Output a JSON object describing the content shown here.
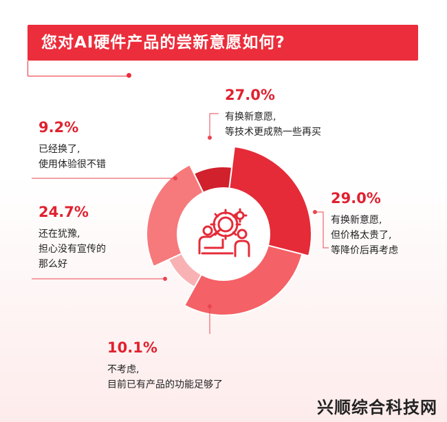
{
  "chart_data": {
    "type": "pie",
    "title": "您对AI硬件产品的尝新意愿如何?",
    "slices": [
      {
        "value": 27.0,
        "pct_label": "27.0%",
        "desc": [
          "有换新意愿,",
          "等技术更成熟一些再买"
        ],
        "color": "#e52b38"
      },
      {
        "value": 29.0,
        "pct_label": "29.0%",
        "desc": [
          "有换新意愿,",
          "但价格太贵了,",
          "等降价后再考虑"
        ],
        "color": "#f46166"
      },
      {
        "value": 10.1,
        "pct_label": "10.1%",
        "desc": [
          "不考虑,",
          "目前已有产品的功能足够了"
        ],
        "color": "#f9b2b4"
      },
      {
        "value": 24.7,
        "pct_label": "24.7%",
        "desc": [
          "还在犹豫,",
          "担心没有宣传的",
          "那么好"
        ],
        "color": "#f6797c"
      },
      {
        "value": 9.2,
        "pct_label": "9.2%",
        "desc": [
          "已经换了,",
          "使用体验很不错"
        ],
        "color": "#d0212c"
      }
    ],
    "center_icon": "ai-robot-gear-icon"
  },
  "watermark": "兴顺综合科技网"
}
